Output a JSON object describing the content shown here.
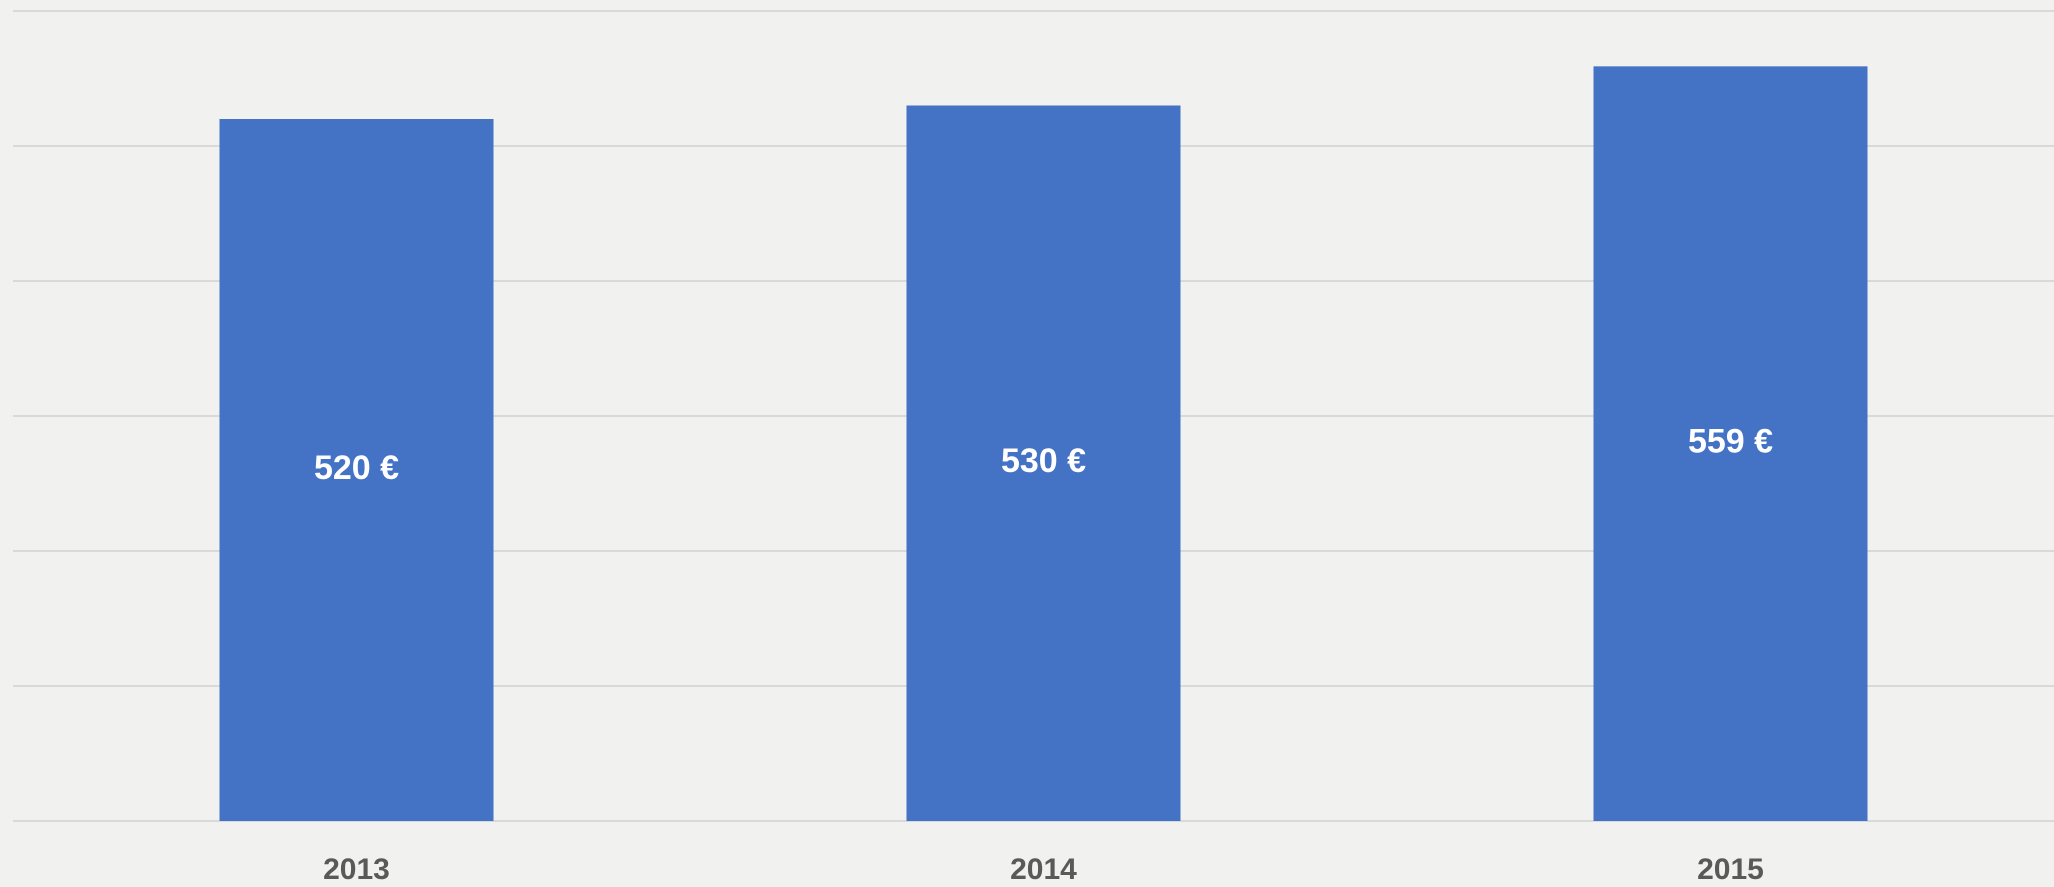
{
  "chart_data": {
    "type": "bar",
    "categories": [
      "2013",
      "2014",
      "2015"
    ],
    "values": [
      520,
      530,
      559
    ],
    "value_labels": [
      "520 €",
      "530 €",
      "559 €"
    ],
    "color": "#4472c4",
    "ylim": [
      0,
      600
    ],
    "yticks": [
      0,
      100,
      200,
      300,
      400,
      500,
      600
    ],
    "grid": true
  }
}
